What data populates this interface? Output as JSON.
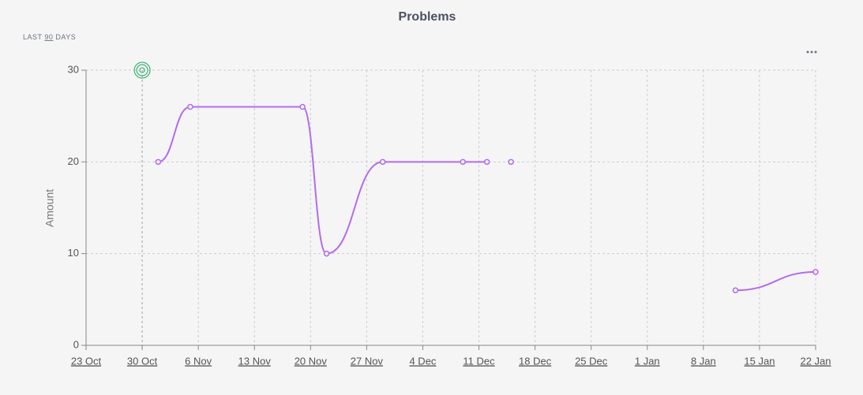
{
  "chart_data": {
    "type": "line",
    "title": "Problems",
    "subtitle": {
      "prefix": "LAST",
      "range": "90",
      "suffix": "DAYS"
    },
    "y_label": "Amount",
    "x": [
      "1 Nov",
      "5 Nov",
      "19 Nov",
      "22 Nov",
      "29 Nov",
      "9 Dec",
      "12 Dec",
      null,
      "15 Dec",
      null,
      "12 Jan",
      "22 Jan"
    ],
    "series": [
      {
        "color": "#b36bf0",
        "values": [
          20,
          26,
          26,
          10,
          20,
          20,
          20,
          null,
          20,
          null,
          6,
          8
        ]
      }
    ],
    "markers": [
      {
        "x": "30 Oct",
        "value": 30,
        "color": "#3cb371"
      }
    ],
    "xlim": [
      "23 Oct",
      "22 Jan"
    ],
    "xticks": [
      "23 Oct",
      "30 Oct",
      "6 Nov",
      "13 Nov",
      "20 Nov",
      "27 Nov",
      "4 Dec",
      "11 Dec",
      "18 Dec",
      "25 Dec",
      "1 Jan",
      "8 Jan",
      "15 Jan",
      "22 Jan"
    ],
    "ylim": [
      0,
      30
    ],
    "yticks": [
      0,
      10,
      20,
      30
    ],
    "grid": true
  }
}
